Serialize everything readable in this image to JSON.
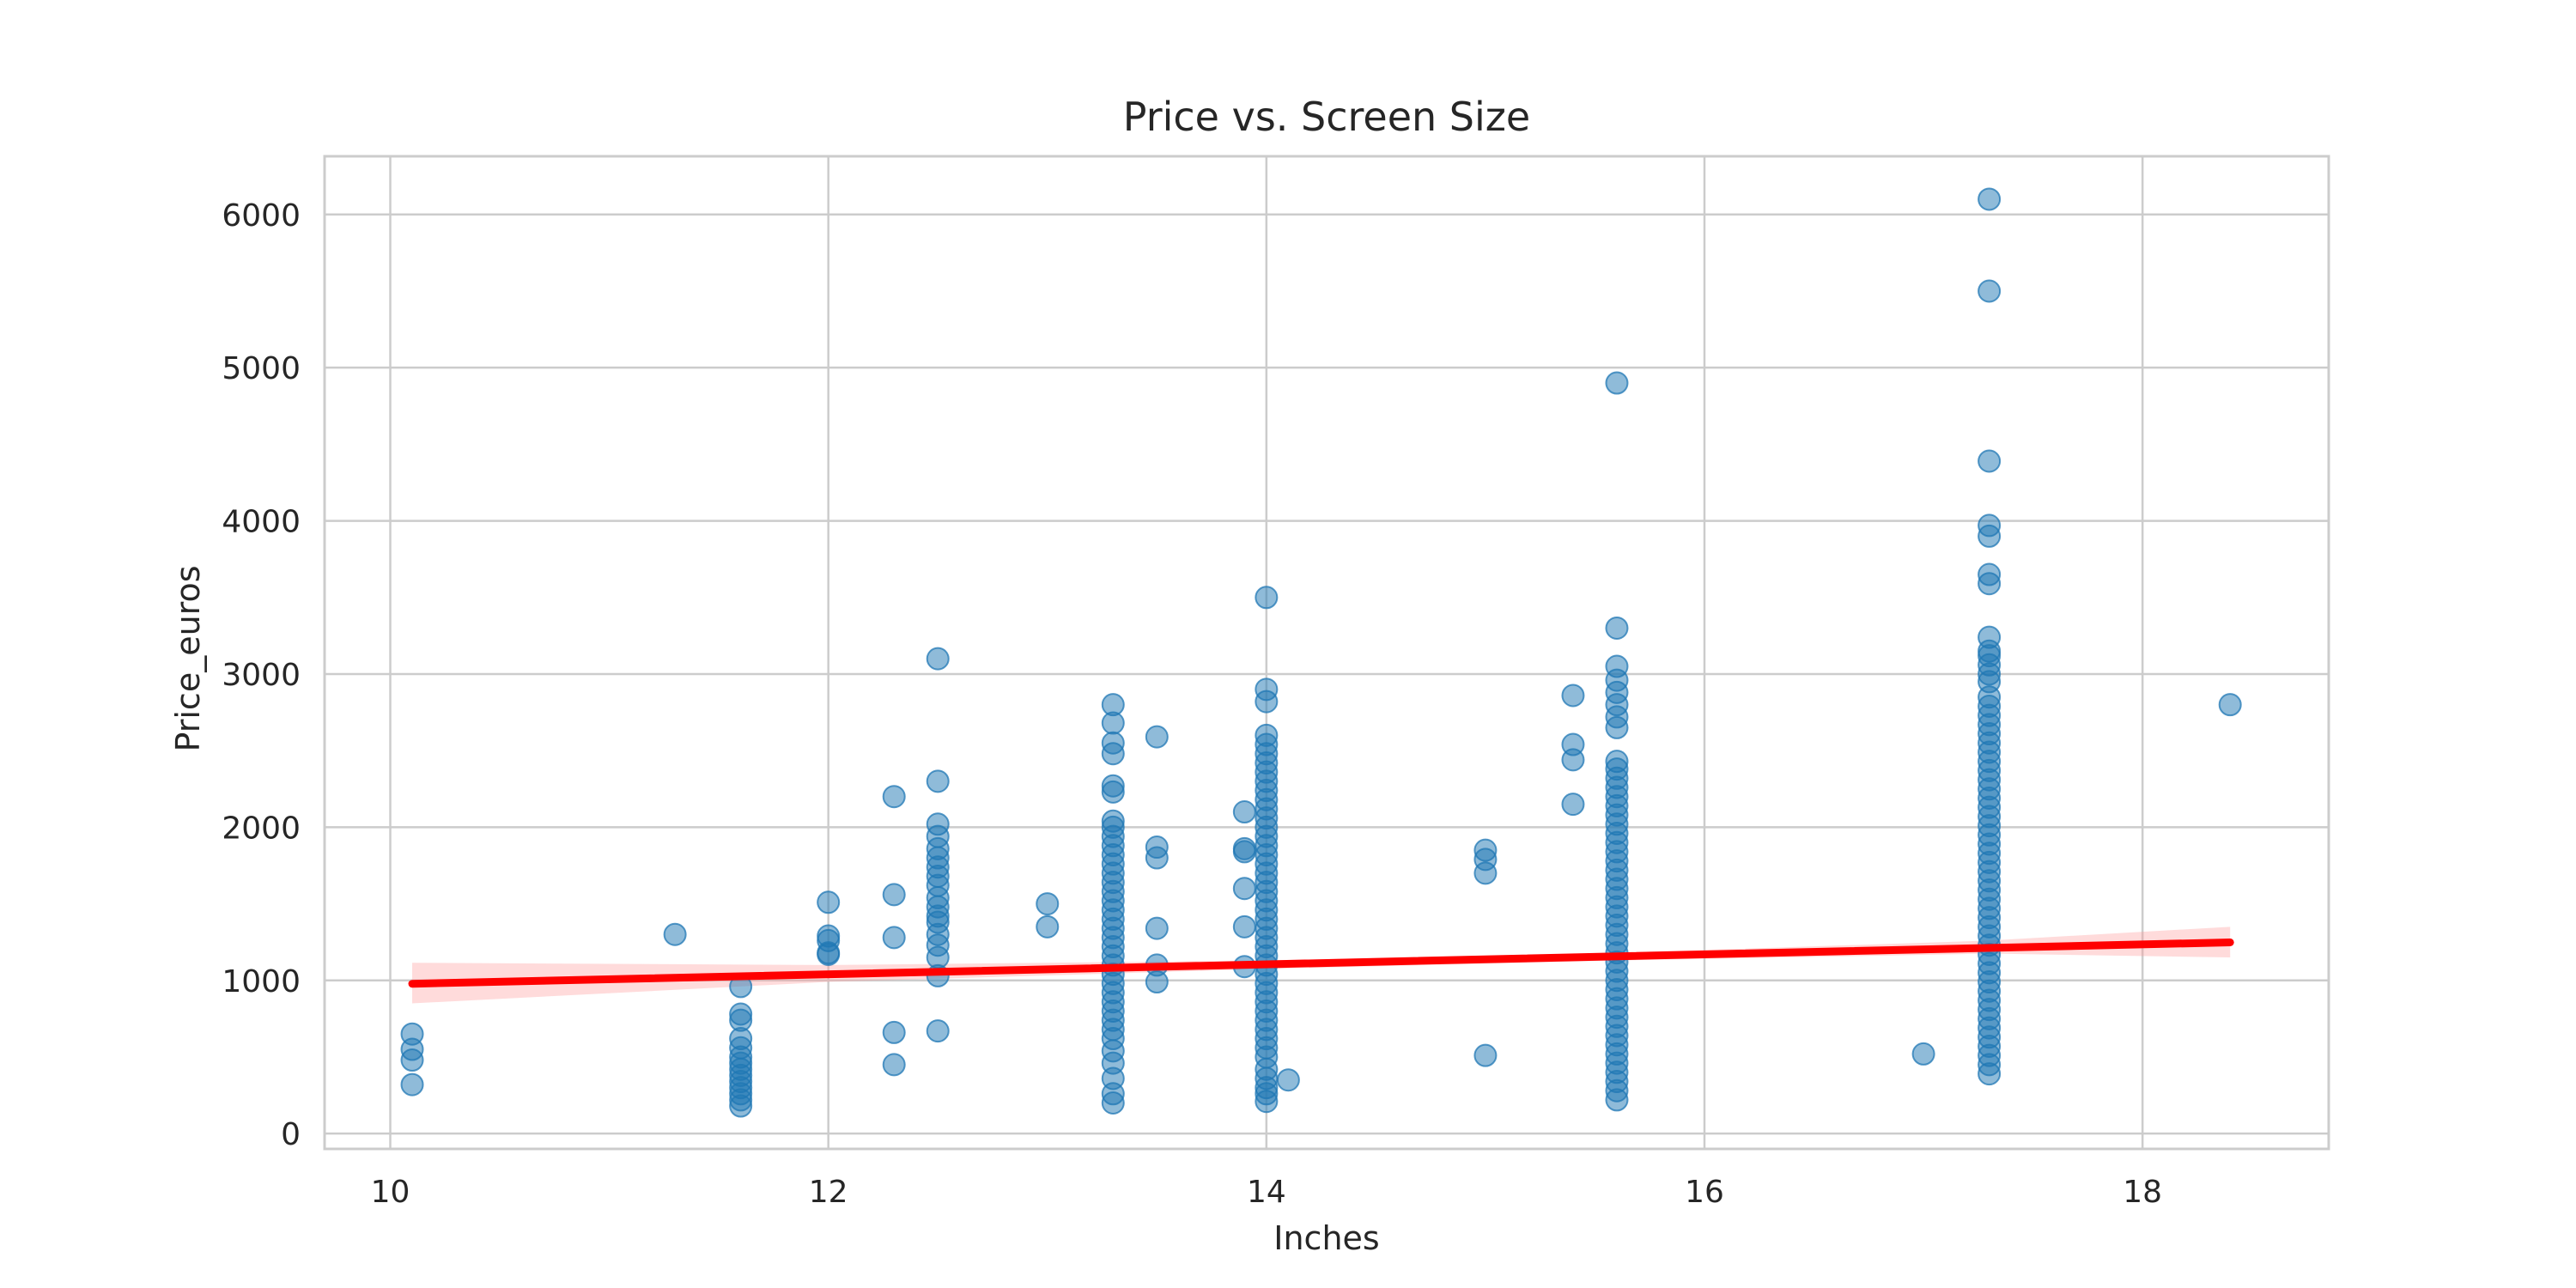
{
  "chart_data": {
    "type": "scatter",
    "title": "Price vs. Screen Size",
    "xlabel": "Inches",
    "ylabel": "Price_euros",
    "xlim": [
      9.7,
      18.85
    ],
    "ylim": [
      -100,
      6380
    ],
    "xticks": [
      10,
      12,
      14,
      16,
      18
    ],
    "yticks": [
      0,
      1000,
      2000,
      3000,
      4000,
      5000,
      6000
    ],
    "grid": true,
    "colors": {
      "points": "#1f77b4",
      "regression_line": "#ff0000",
      "confidence_band": "#ff9999"
    },
    "series": [
      {
        "values": [
          [
            10.1,
            320
          ],
          [
            10.1,
            480
          ],
          [
            10.1,
            550
          ],
          [
            10.1,
            650
          ],
          [
            11.3,
            1300
          ],
          [
            11.6,
            180
          ],
          [
            11.6,
            220
          ],
          [
            11.6,
            260
          ],
          [
            11.6,
            300
          ],
          [
            11.6,
            340
          ],
          [
            11.6,
            380
          ],
          [
            11.6,
            420
          ],
          [
            11.6,
            460
          ],
          [
            11.6,
            500
          ],
          [
            11.6,
            560
          ],
          [
            11.6,
            620
          ],
          [
            11.6,
            740
          ],
          [
            11.6,
            780
          ],
          [
            11.6,
            960
          ],
          [
            12.0,
            1170
          ],
          [
            12.0,
            1180
          ],
          [
            12.0,
            1260
          ],
          [
            12.0,
            1290
          ],
          [
            12.0,
            1510
          ],
          [
            12.3,
            450
          ],
          [
            12.3,
            660
          ],
          [
            12.3,
            1280
          ],
          [
            12.3,
            1560
          ],
          [
            12.3,
            2200
          ],
          [
            12.5,
            670
          ],
          [
            12.5,
            1030
          ],
          [
            12.5,
            1150
          ],
          [
            12.5,
            1230
          ],
          [
            12.5,
            1300
          ],
          [
            12.5,
            1380
          ],
          [
            12.5,
            1420
          ],
          [
            12.5,
            1480
          ],
          [
            12.5,
            1540
          ],
          [
            12.5,
            1620
          ],
          [
            12.5,
            1680
          ],
          [
            12.5,
            1740
          ],
          [
            12.5,
            1800
          ],
          [
            12.5,
            1860
          ],
          [
            12.5,
            1940
          ],
          [
            12.5,
            2020
          ],
          [
            12.5,
            2300
          ],
          [
            12.5,
            3100
          ],
          [
            13.0,
            1350
          ],
          [
            13.0,
            1500
          ],
          [
            13.3,
            200
          ],
          [
            13.3,
            260
          ],
          [
            13.3,
            360
          ],
          [
            13.3,
            460
          ],
          [
            13.3,
            540
          ],
          [
            13.3,
            620
          ],
          [
            13.3,
            680
          ],
          [
            13.3,
            740
          ],
          [
            13.3,
            800
          ],
          [
            13.3,
            860
          ],
          [
            13.3,
            920
          ],
          [
            13.3,
            980
          ],
          [
            13.3,
            1040
          ],
          [
            13.3,
            1100
          ],
          [
            13.3,
            1160
          ],
          [
            13.3,
            1220
          ],
          [
            13.3,
            1280
          ],
          [
            13.3,
            1340
          ],
          [
            13.3,
            1400
          ],
          [
            13.3,
            1460
          ],
          [
            13.3,
            1520
          ],
          [
            13.3,
            1580
          ],
          [
            13.3,
            1640
          ],
          [
            13.3,
            1700
          ],
          [
            13.3,
            1760
          ],
          [
            13.3,
            1820
          ],
          [
            13.3,
            1880
          ],
          [
            13.3,
            1940
          ],
          [
            13.3,
            2000
          ],
          [
            13.3,
            2040
          ],
          [
            13.3,
            2230
          ],
          [
            13.3,
            2270
          ],
          [
            13.3,
            2480
          ],
          [
            13.3,
            2550
          ],
          [
            13.3,
            2680
          ],
          [
            13.3,
            2800
          ],
          [
            13.5,
            990
          ],
          [
            13.5,
            1100
          ],
          [
            13.5,
            1340
          ],
          [
            13.5,
            1800
          ],
          [
            13.5,
            1870
          ],
          [
            13.5,
            2590
          ],
          [
            13.9,
            1090
          ],
          [
            13.9,
            1350
          ],
          [
            13.9,
            1600
          ],
          [
            13.9,
            1840
          ],
          [
            13.9,
            1860
          ],
          [
            13.9,
            2100
          ],
          [
            14.0,
            210
          ],
          [
            14.0,
            260
          ],
          [
            14.0,
            300
          ],
          [
            14.0,
            360
          ],
          [
            14.0,
            420
          ],
          [
            14.0,
            500
          ],
          [
            14.0,
            560
          ],
          [
            14.0,
            620
          ],
          [
            14.0,
            680
          ],
          [
            14.0,
            740
          ],
          [
            14.0,
            800
          ],
          [
            14.0,
            860
          ],
          [
            14.0,
            920
          ],
          [
            14.0,
            980
          ],
          [
            14.0,
            1040
          ],
          [
            14.0,
            1100
          ],
          [
            14.0,
            1160
          ],
          [
            14.0,
            1220
          ],
          [
            14.0,
            1280
          ],
          [
            14.0,
            1340
          ],
          [
            14.0,
            1400
          ],
          [
            14.0,
            1460
          ],
          [
            14.0,
            1520
          ],
          [
            14.0,
            1580
          ],
          [
            14.0,
            1640
          ],
          [
            14.0,
            1700
          ],
          [
            14.0,
            1760
          ],
          [
            14.0,
            1820
          ],
          [
            14.0,
            1880
          ],
          [
            14.0,
            1940
          ],
          [
            14.0,
            2000
          ],
          [
            14.0,
            2060
          ],
          [
            14.0,
            2120
          ],
          [
            14.0,
            2180
          ],
          [
            14.0,
            2240
          ],
          [
            14.0,
            2300
          ],
          [
            14.0,
            2360
          ],
          [
            14.0,
            2420
          ],
          [
            14.0,
            2480
          ],
          [
            14.0,
            2540
          ],
          [
            14.0,
            2600
          ],
          [
            14.0,
            2820
          ],
          [
            14.0,
            2900
          ],
          [
            14.0,
            3500
          ],
          [
            14.1,
            350
          ],
          [
            15.0,
            510
          ],
          [
            15.0,
            1700
          ],
          [
            15.0,
            1790
          ],
          [
            15.0,
            1850
          ],
          [
            15.4,
            2150
          ],
          [
            15.4,
            2440
          ],
          [
            15.4,
            2540
          ],
          [
            15.4,
            2860
          ],
          [
            15.6,
            220
          ],
          [
            15.6,
            280
          ],
          [
            15.6,
            340
          ],
          [
            15.6,
            400
          ],
          [
            15.6,
            460
          ],
          [
            15.6,
            520
          ],
          [
            15.6,
            580
          ],
          [
            15.6,
            640
          ],
          [
            15.6,
            700
          ],
          [
            15.6,
            760
          ],
          [
            15.6,
            820
          ],
          [
            15.6,
            880
          ],
          [
            15.6,
            940
          ],
          [
            15.6,
            1000
          ],
          [
            15.6,
            1060
          ],
          [
            15.6,
            1120
          ],
          [
            15.6,
            1180
          ],
          [
            15.6,
            1240
          ],
          [
            15.6,
            1300
          ],
          [
            15.6,
            1360
          ],
          [
            15.6,
            1420
          ],
          [
            15.6,
            1480
          ],
          [
            15.6,
            1540
          ],
          [
            15.6,
            1600
          ],
          [
            15.6,
            1660
          ],
          [
            15.6,
            1720
          ],
          [
            15.6,
            1780
          ],
          [
            15.6,
            1840
          ],
          [
            15.6,
            1900
          ],
          [
            15.6,
            1960
          ],
          [
            15.6,
            2020
          ],
          [
            15.6,
            2080
          ],
          [
            15.6,
            2140
          ],
          [
            15.6,
            2200
          ],
          [
            15.6,
            2260
          ],
          [
            15.6,
            2320
          ],
          [
            15.6,
            2380
          ],
          [
            15.6,
            2430
          ],
          [
            15.6,
            2650
          ],
          [
            15.6,
            2720
          ],
          [
            15.6,
            2800
          ],
          [
            15.6,
            2880
          ],
          [
            15.6,
            2960
          ],
          [
            15.6,
            3050
          ],
          [
            15.6,
            3300
          ],
          [
            15.6,
            4900
          ],
          [
            17.0,
            520
          ],
          [
            17.3,
            390
          ],
          [
            17.3,
            450
          ],
          [
            17.3,
            510
          ],
          [
            17.3,
            570
          ],
          [
            17.3,
            630
          ],
          [
            17.3,
            690
          ],
          [
            17.3,
            750
          ],
          [
            17.3,
            810
          ],
          [
            17.3,
            870
          ],
          [
            17.3,
            930
          ],
          [
            17.3,
            990
          ],
          [
            17.3,
            1050
          ],
          [
            17.3,
            1110
          ],
          [
            17.3,
            1170
          ],
          [
            17.3,
            1230
          ],
          [
            17.3,
            1290
          ],
          [
            17.3,
            1350
          ],
          [
            17.3,
            1410
          ],
          [
            17.3,
            1470
          ],
          [
            17.3,
            1530
          ],
          [
            17.3,
            1590
          ],
          [
            17.3,
            1650
          ],
          [
            17.3,
            1710
          ],
          [
            17.3,
            1770
          ],
          [
            17.3,
            1830
          ],
          [
            17.3,
            1890
          ],
          [
            17.3,
            1950
          ],
          [
            17.3,
            2010
          ],
          [
            17.3,
            2070
          ],
          [
            17.3,
            2130
          ],
          [
            17.3,
            2190
          ],
          [
            17.3,
            2250
          ],
          [
            17.3,
            2310
          ],
          [
            17.3,
            2370
          ],
          [
            17.3,
            2430
          ],
          [
            17.3,
            2490
          ],
          [
            17.3,
            2550
          ],
          [
            17.3,
            2610
          ],
          [
            17.3,
            2670
          ],
          [
            17.3,
            2730
          ],
          [
            17.3,
            2790
          ],
          [
            17.3,
            2850
          ],
          [
            17.3,
            2950
          ],
          [
            17.3,
            3000
          ],
          [
            17.3,
            3060
          ],
          [
            17.3,
            3120
          ],
          [
            17.3,
            3150
          ],
          [
            17.3,
            3240
          ],
          [
            17.3,
            3590
          ],
          [
            17.3,
            3650
          ],
          [
            17.3,
            3900
          ],
          [
            17.3,
            3970
          ],
          [
            17.3,
            4390
          ],
          [
            17.3,
            5500
          ],
          [
            17.3,
            6100
          ],
          [
            18.4,
            2800
          ]
        ]
      }
    ],
    "regression": {
      "line": [
        [
          10.1,
          978
        ],
        [
          18.4,
          1248
        ]
      ],
      "band": {
        "x": [
          10.1,
          12.0,
          14.0,
          15.6,
          17.3,
          18.4
        ],
        "lower": [
          850,
          990,
          1075,
          1130,
          1175,
          1150
        ],
        "upper": [
          1115,
          1100,
          1130,
          1180,
          1260,
          1350
        ]
      }
    }
  }
}
